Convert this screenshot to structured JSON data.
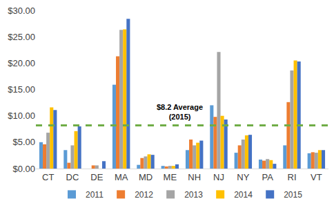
{
  "chart_data": {
    "type": "bar",
    "categories": [
      "CT",
      "DC",
      "DE",
      "MA",
      "MD",
      "ME",
      "NH",
      "NJ",
      "NY",
      "PA",
      "RI",
      "VT"
    ],
    "series": [
      {
        "name": "2011",
        "color": "#5B9BD5",
        "values": [
          5.0,
          3.5,
          0,
          15.9,
          0.7,
          0.5,
          3.5,
          12.0,
          3.0,
          1.7,
          4.4,
          2.9
        ]
      },
      {
        "name": "2012",
        "color": "#ED7D31",
        "values": [
          4.6,
          1.1,
          0.6,
          21.3,
          2.0,
          0.4,
          5.5,
          9.8,
          4.4,
          1.5,
          12.6,
          3.1
        ]
      },
      {
        "name": "2013",
        "color": "#A5A5A5",
        "values": [
          6.8,
          4.4,
          0.6,
          26.3,
          2.3,
          0.5,
          4.4,
          22.1,
          5.5,
          1.8,
          18.6,
          3.0
        ]
      },
      {
        "name": "2014",
        "color": "#FFC000",
        "values": [
          11.6,
          7.1,
          0,
          26.4,
          2.7,
          0.5,
          4.9,
          10.0,
          6.3,
          1.6,
          20.5,
          3.5
        ]
      },
      {
        "name": "2015",
        "color": "#4472C4",
        "values": [
          11.1,
          8.0,
          1.4,
          28.4,
          2.6,
          0.8,
          5.3,
          9.3,
          6.4,
          0.9,
          20.3,
          3.5
        ]
      }
    ],
    "reference_line": {
      "value": 8.2,
      "lines": [
        "$8.2 Average",
        "(2015)"
      ],
      "color": "#70AD47",
      "line_style": "dashed"
    },
    "ylim": [
      0,
      30
    ],
    "yticks": [
      {
        "value": 0,
        "label": "$0.00"
      },
      {
        "value": 5,
        "label": "$5.00"
      },
      {
        "value": 10,
        "label": "$10.00"
      },
      {
        "value": 15,
        "label": "$15.00"
      },
      {
        "value": 20,
        "label": "$20.00"
      },
      {
        "value": 25,
        "label": "$25.00"
      },
      {
        "value": 30,
        "label": "$30.00"
      }
    ],
    "grid": false,
    "legend": "bottom"
  }
}
